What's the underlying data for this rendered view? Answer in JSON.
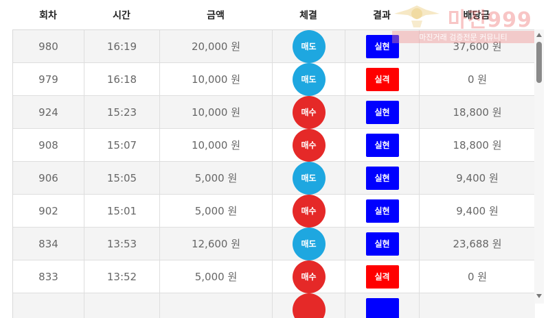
{
  "columns": [
    "회차",
    "시간",
    "금액",
    "체결",
    "결과",
    "배당금"
  ],
  "colors": {
    "buy": "#e52928",
    "sell": "#1ea7e0",
    "win": "#0000ff",
    "lose": "#ff0000"
  },
  "rows": [
    {
      "round": "980",
      "time": "16:19",
      "amount": "20,000 원",
      "trade": "매도",
      "trade_type": "sell",
      "result": "실현",
      "result_type": "win",
      "payout": "37,600 원"
    },
    {
      "round": "979",
      "time": "16:18",
      "amount": "10,000 원",
      "trade": "매도",
      "trade_type": "sell",
      "result": "실격",
      "result_type": "lose",
      "payout": "0 원"
    },
    {
      "round": "924",
      "time": "15:23",
      "amount": "10,000 원",
      "trade": "매수",
      "trade_type": "buy",
      "result": "실현",
      "result_type": "win",
      "payout": "18,800 원"
    },
    {
      "round": "908",
      "time": "15:07",
      "amount": "10,000 원",
      "trade": "매수",
      "trade_type": "buy",
      "result": "실현",
      "result_type": "win",
      "payout": "18,800 원"
    },
    {
      "round": "906",
      "time": "15:05",
      "amount": "5,000 원",
      "trade": "매도",
      "trade_type": "sell",
      "result": "실현",
      "result_type": "win",
      "payout": "9,400 원"
    },
    {
      "round": "902",
      "time": "15:01",
      "amount": "5,000 원",
      "trade": "매수",
      "trade_type": "buy",
      "result": "실현",
      "result_type": "win",
      "payout": "9,400 원"
    },
    {
      "round": "834",
      "time": "13:53",
      "amount": "12,600 원",
      "trade": "매도",
      "trade_type": "sell",
      "result": "실현",
      "result_type": "win",
      "payout": "23,688 원"
    },
    {
      "round": "833",
      "time": "13:52",
      "amount": "5,000 원",
      "trade": "매수",
      "trade_type": "buy",
      "result": "실격",
      "result_type": "lose",
      "payout": "0 원"
    },
    {
      "round": "",
      "time": "",
      "amount": "",
      "trade": "",
      "trade_type": "buy",
      "result": "",
      "result_type": "win",
      "payout": ""
    }
  ],
  "watermark": {
    "brand": "마진999",
    "tagline": "마진거래 검증전문 커뮤니티"
  }
}
